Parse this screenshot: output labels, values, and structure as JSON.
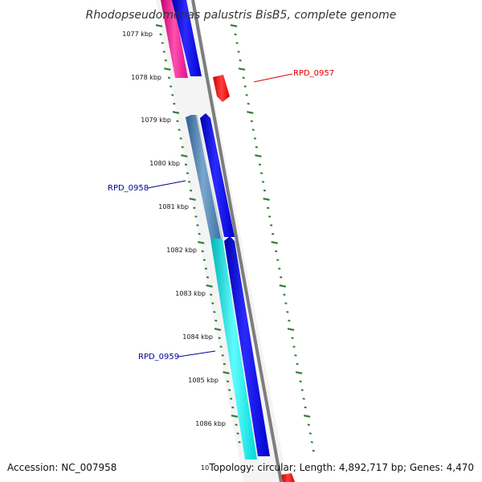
{
  "title": "Rhodopseudomonas palustris BisB5, complete genome",
  "footer": {
    "accession": "Accession: NC_007958",
    "topology": "Topology: circular; Length: 4,892,717 bp; Genes: 4,470",
    "partial_tick": "10"
  },
  "ticks": [
    {
      "label": "1077 kbp"
    },
    {
      "label": "1078 kbp"
    },
    {
      "label": "1079 kbp"
    },
    {
      "label": "1080 kbp"
    },
    {
      "label": "1081 kbp"
    },
    {
      "label": "1082 kbp"
    },
    {
      "label": "1083 kbp"
    },
    {
      "label": "1084 kbp"
    },
    {
      "label": "1085 kbp"
    },
    {
      "label": "1086 kbp"
    }
  ],
  "gene_labels": [
    {
      "name": "RPD_0957",
      "color": "#dd0000"
    },
    {
      "name": "RPD_0958",
      "color": "#000099"
    },
    {
      "name": "RPD_0959",
      "color": "#000099"
    }
  ],
  "colors": {
    "cds_forward": "#0000ff",
    "cds_reverse_a": "#ff1493",
    "cds_reverse_b": "#00e5e5",
    "cds_reverse_c": "#4682b4",
    "gene_red": "#ff0000",
    "backbone": "#808080",
    "ticks": "#2e7d32"
  }
}
